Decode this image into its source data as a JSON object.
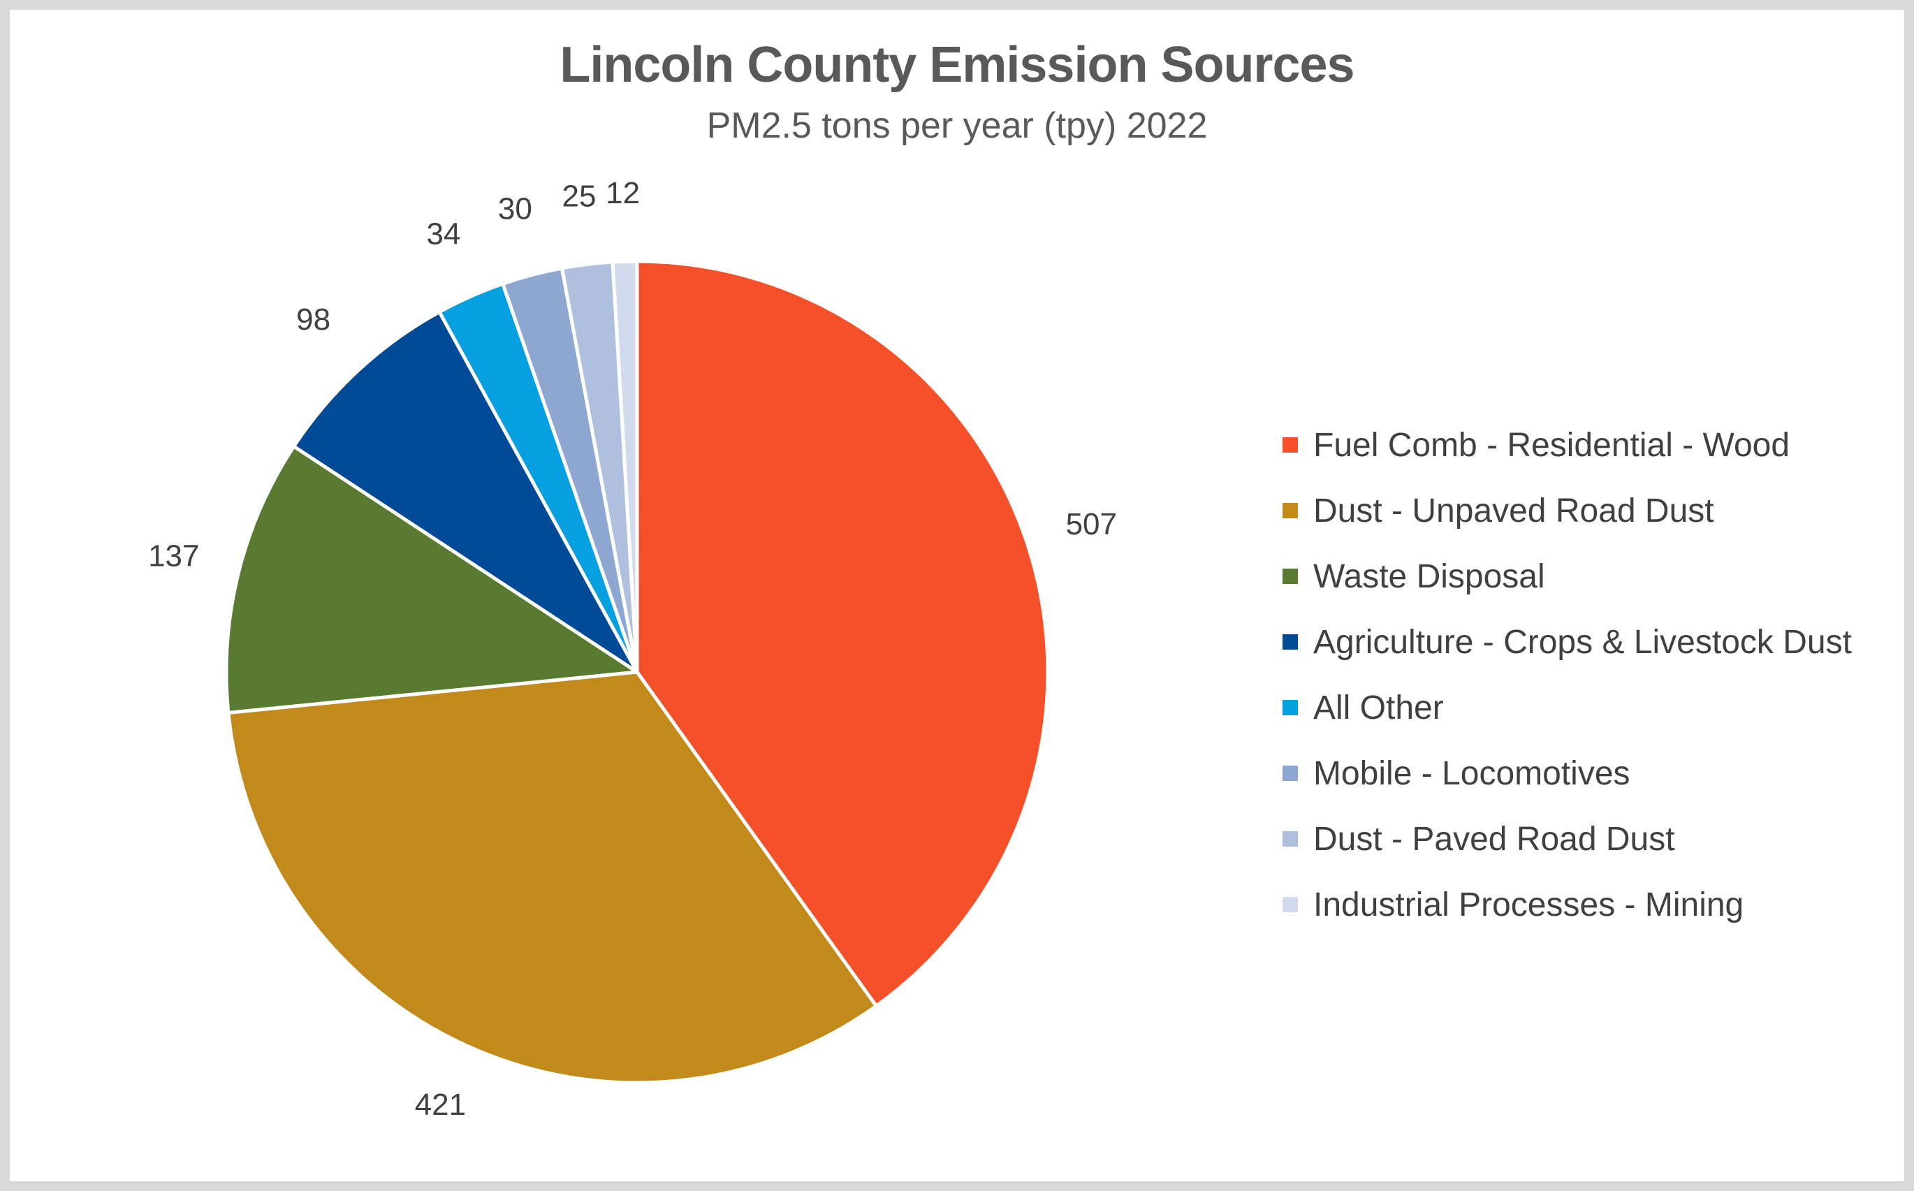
{
  "chart_data": {
    "type": "pie",
    "title": "Lincoln County Emission Sources",
    "subtitle": "PM2.5 tons per year (tpy) 2022",
    "legend_position": "right",
    "categories": [
      "Fuel Comb - Residential - Wood",
      "Dust - Unpaved Road Dust",
      "Waste Disposal",
      "Agriculture - Crops & Livestock Dust",
      "All Other",
      "Mobile - Locomotives",
      "Dust - Paved Road Dust",
      "Industrial Processes - Mining"
    ],
    "values": [
      507,
      421,
      137,
      98,
      34,
      30,
      25,
      12
    ],
    "colors": [
      "#f4502a",
      "#c18a1a",
      "#587b31",
      "#014a97",
      "#06a0e0",
      "#8ea7d0",
      "#afc0de",
      "#d2dbed"
    ]
  }
}
